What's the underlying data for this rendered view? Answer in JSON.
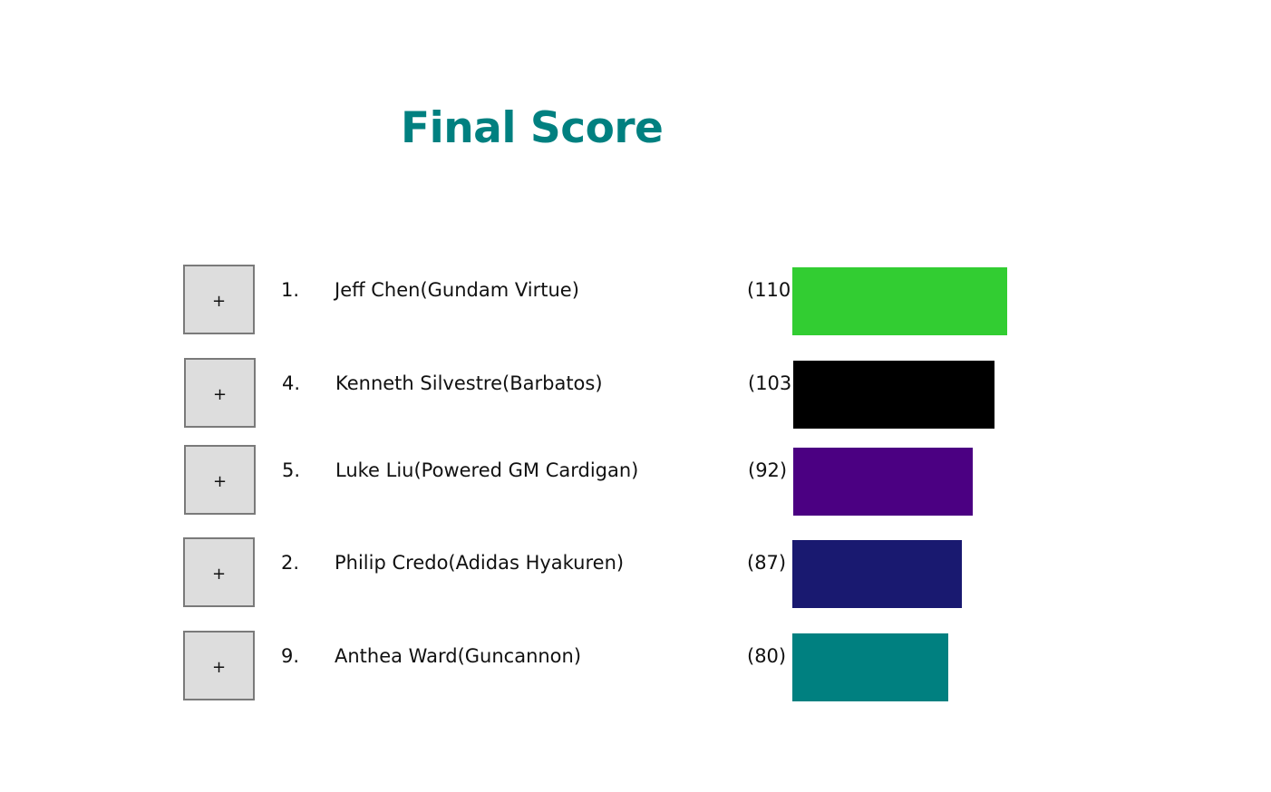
{
  "page": {
    "title": "Final Score",
    "title_color": "#008080"
  },
  "score_max": 110,
  "entries": [
    {
      "expand_label": "+",
      "rank": "1.",
      "name": "Jeff Chen(Gundam Virtue)",
      "score_label": "(110)",
      "score": 110,
      "color": "#32cd32"
    },
    {
      "expand_label": "+",
      "rank": "4.",
      "name": "Kenneth Silvestre(Barbatos)",
      "score_label": "(103)",
      "score": 103,
      "color": "#000000"
    },
    {
      "expand_label": "+",
      "rank": "5.",
      "name": "Luke Liu(Powered GM Cardigan)",
      "score_label": "(92)",
      "score": 92,
      "color": "#4b0082"
    },
    {
      "expand_label": "+",
      "rank": "2.",
      "name": "Philip Credo(Adidas Hyakuren)",
      "score_label": "(87)",
      "score": 87,
      "color": "#191970"
    },
    {
      "expand_label": "+",
      "rank": "9.",
      "name": "Anthea Ward(Guncannon)",
      "score_label": "(80)",
      "score": 80,
      "color": "#008080"
    }
  ]
}
